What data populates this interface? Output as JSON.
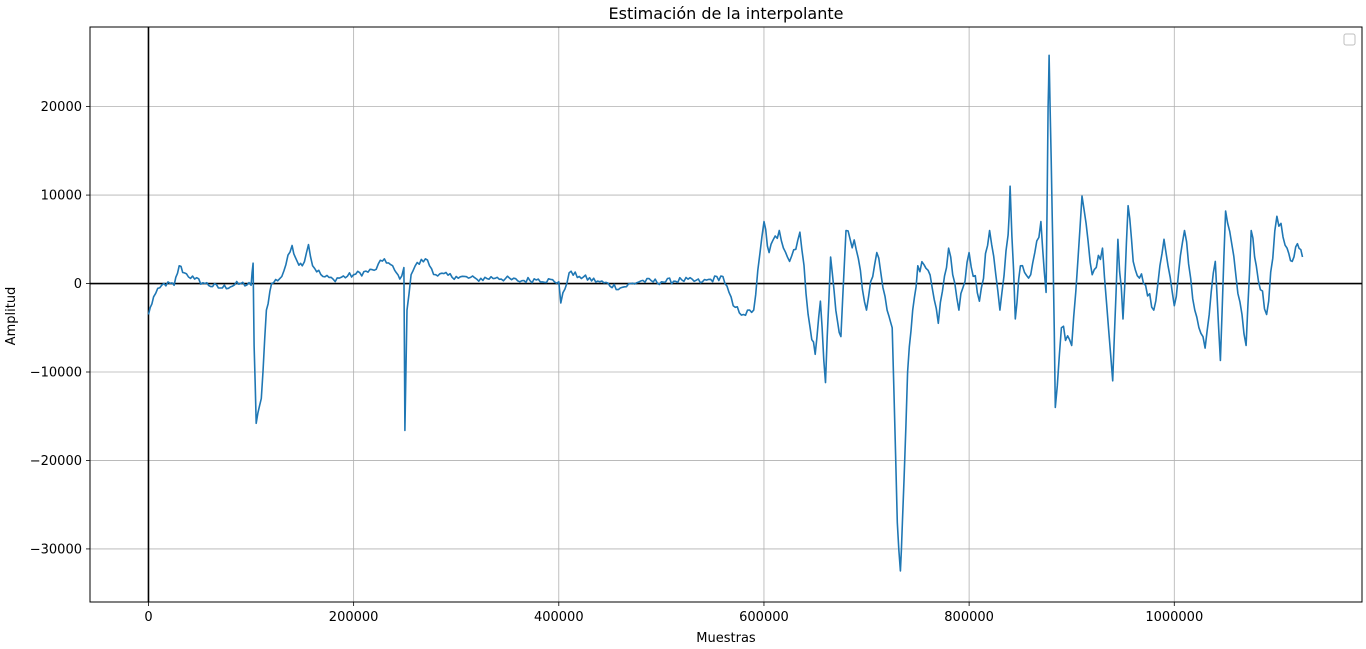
{
  "chart_data": {
    "type": "line",
    "title": "Estimación de la interpolante",
    "xlabel": "Muestras",
    "ylabel": "Amplitud",
    "xlim": [
      -57000,
      1183000
    ],
    "ylim": [
      -36000,
      29000
    ],
    "xticks": [
      0,
      200000,
      400000,
      600000,
      800000,
      1000000
    ],
    "xtick_labels": [
      "0",
      "200000",
      "400000",
      "600000",
      "800000",
      "1000000"
    ],
    "yticks": [
      -30000,
      -20000,
      -10000,
      0,
      10000,
      20000
    ],
    "ytick_labels": [
      "−30000",
      "−20000",
      "−10000",
      "0",
      "10000",
      "20000"
    ],
    "grid": true,
    "legend": "top-right (empty)",
    "reference_lines": {
      "x": 0,
      "y": 0
    },
    "series": [
      {
        "color": "#1f77b4",
        "x": [
          0,
          5000,
          15000,
          25000,
          30000,
          35000,
          45000,
          55000,
          70000,
          90000,
          100000,
          102000,
          103000,
          105000,
          110000,
          115000,
          120000,
          130000,
          140000,
          145000,
          150000,
          156000,
          160000,
          170000,
          180000,
          200000,
          220000,
          230000,
          240000,
          245000,
          249000,
          250000,
          252000,
          256000,
          260000,
          270000,
          280000,
          300000,
          320000,
          340000,
          360000,
          380000,
          400000,
          402000,
          410000,
          420000,
          440000,
          460000,
          480000,
          500000,
          520000,
          540000,
          560000,
          570000,
          580000,
          590000,
          600000,
          605000,
          615000,
          625000,
          635000,
          645000,
          650000,
          655000,
          660000,
          665000,
          670000,
          675000,
          680000,
          690000,
          700000,
          710000,
          720000,
          725000,
          730000,
          733000,
          735000,
          740000,
          745000,
          750000,
          760000,
          770000,
          780000,
          790000,
          800000,
          810000,
          820000,
          830000,
          838000,
          840000,
          845000,
          850000,
          860000,
          870000,
          875000,
          877000,
          878000,
          880000,
          882000,
          884000,
          890000,
          900000,
          910000,
          920000,
          930000,
          940000,
          945000,
          950000,
          955000,
          960000,
          970000,
          980000,
          990000,
          1000000,
          1010000,
          1020000,
          1030000,
          1040000,
          1045000,
          1050000,
          1060000,
          1070000,
          1075000,
          1080000,
          1090000,
          1100000,
          1110000,
          1115000,
          1120000,
          1125000
        ],
        "y": [
          -3500,
          -1500,
          0,
          -200,
          2000,
          1200,
          500,
          0,
          -500,
          0,
          -200,
          2300,
          -7000,
          -15800,
          -13000,
          -3000,
          0,
          800,
          4300,
          2500,
          2000,
          4400,
          2000,
          800,
          500,
          1000,
          1500,
          2800,
          1500,
          500,
          1800,
          -16600,
          -3000,
          1000,
          2000,
          2800,
          1000,
          800,
          500,
          700,
          300,
          500,
          200,
          -2200,
          1200,
          800,
          200,
          -500,
          300,
          200,
          400,
          200,
          800,
          -2500,
          -3500,
          -3000,
          7000,
          3500,
          6000,
          2500,
          5800,
          -5000,
          -8000,
          -2000,
          -11200,
          3000,
          -3000,
          -6000,
          6000,
          3800,
          -3000,
          3500,
          -3000,
          -5000,
          -27000,
          -32500,
          -27000,
          -10000,
          -3000,
          2000,
          1500,
          -4500,
          4000,
          -3000,
          3500,
          -2000,
          6000,
          -3000,
          5500,
          11000,
          -4000,
          2000,
          1000,
          7000,
          -1000,
          20000,
          25800,
          14000,
          2000,
          -14000,
          -5000,
          -7000,
          9900,
          1000,
          4000,
          -11000,
          5000,
          -4000,
          8800,
          2500,
          0,
          -3000,
          5000,
          -2500,
          6000,
          -3000,
          -7300,
          2500,
          -8700,
          8200,
          1000,
          -7000,
          6000,
          2000,
          -3500,
          7600,
          4000,
          2500,
          4500,
          3000
        ]
      }
    ]
  }
}
